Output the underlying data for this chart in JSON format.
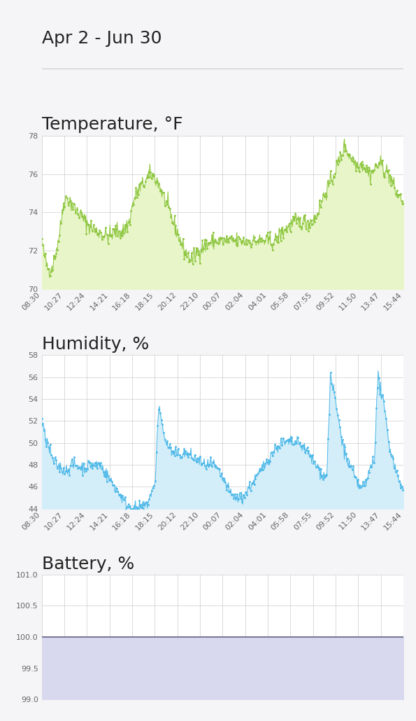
{
  "date_range": "Apr 2 - Jun 30",
  "background_color": "#f5f5f7",
  "panel_bg": "#ffffff",
  "temp_title": "Temperature, °F",
  "temp_ylim": [
    70,
    78
  ],
  "temp_yticks": [
    70,
    72,
    74,
    76,
    78
  ],
  "temp_color": "#8dc63f",
  "temp_fill_color": "#e8f5c8",
  "hum_title": "Humidity, %",
  "hum_ylim": [
    44,
    58
  ],
  "hum_yticks": [
    44,
    46,
    48,
    50,
    52,
    54,
    56,
    58
  ],
  "hum_color": "#4db8e8",
  "hum_fill_color": "#d4eef9",
  "bat_title": "Battery, %",
  "bat_ylim": [
    99.0,
    101.0
  ],
  "bat_yticks": [
    99.0,
    99.5,
    100.0,
    100.5,
    101.0
  ],
  "bat_color": "#7a7a9a",
  "bat_fill_color": "#d8d8ee",
  "xtick_labels": [
    "08:30",
    "10:27",
    "12:24",
    "14:21",
    "16:18",
    "18:15",
    "20:12",
    "22:10",
    "00:07",
    "02:04",
    "04:01",
    "05:58",
    "07:55",
    "09:52",
    "11:50",
    "13:47",
    "15:44"
  ],
  "grid_color": "#cccccc",
  "title_fontsize": 18,
  "tick_fontsize": 8
}
